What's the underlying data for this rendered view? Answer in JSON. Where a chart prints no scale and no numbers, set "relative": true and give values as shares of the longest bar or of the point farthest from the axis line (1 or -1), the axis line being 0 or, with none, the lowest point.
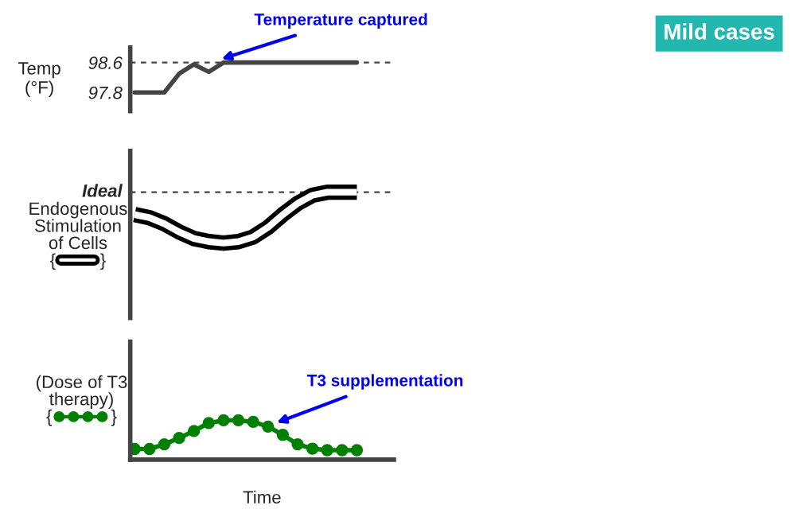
{
  "chart_data": [
    {
      "type": "line",
      "ylabel": "Temp\n(°F)",
      "categories": [
        null,
        null,
        null,
        null,
        null,
        null,
        null,
        null,
        null,
        null,
        null,
        null,
        null,
        null,
        null,
        null
      ],
      "series": [
        {
          "color": "#444444",
          "values": [
            97.8,
            97.8,
            97.8,
            98.3,
            98.55,
            98.35,
            98.6,
            98.6,
            98.6,
            98.6,
            98.6,
            98.6,
            98.6,
            98.6,
            98.6,
            98.6
          ]
        }
      ],
      "ylim": [
        97.3,
        99.0
      ],
      "yticks": [
        97.8,
        98.6
      ],
      "ref_lines": [
        {
          "axis": "y",
          "value": 98.6,
          "line_style": "dashed",
          "color": "#444444"
        }
      ],
      "annotations": [
        "Temperature captured"
      ],
      "tick_labels": "y",
      "grid": false,
      "legend": false,
      "marker": "none"
    },
    {
      "type": "line",
      "relative": true,
      "ylabel": "Endogenous\nStimulation\nof Cells\n{         }",
      "categories": [
        null,
        null,
        null,
        null,
        null,
        null,
        null,
        null,
        null,
        null,
        null,
        null,
        null,
        null,
        null,
        null
      ],
      "series": [
        {
          "color": "#000000",
          "values": [
            0.56,
            0.5,
            0.38,
            0.22,
            0.09,
            0.03,
            0,
            0.03,
            0.12,
            0.31,
            0.56,
            0.78,
            0.94,
            1,
            1,
            1
          ]
        }
      ],
      "ref_lines": [
        {
          "axis": "y",
          "value": 1,
          "label": "Ideal",
          "line_style": "dashed",
          "color": "#444444"
        }
      ],
      "tick_labels": false,
      "grid": false,
      "legend": false,
      "marker": "none"
    },
    {
      "type": "line",
      "relative": true,
      "ylabel": "(Dose of T3\ntherapy)\n{            }",
      "xlabel": "Time",
      "categories": [
        null,
        null,
        null,
        null,
        null,
        null,
        null,
        null,
        null,
        null,
        null,
        null,
        null,
        null,
        null,
        null
      ],
      "series": [
        {
          "color": "#008000",
          "values": [
            0.27,
            0.27,
            0.39,
            0.55,
            0.73,
            0.93,
            1,
            1,
            0.96,
            0.84,
            0.63,
            0.39,
            0.28,
            0.24,
            0.24,
            0.24
          ]
        }
      ],
      "annotations": [
        "T3 supplementation"
      ],
      "tick_labels": false,
      "grid": false,
      "legend": false,
      "marker": "circle"
    },
    {
      "type": "other",
      "title": "Mild cases"
    }
  ]
}
